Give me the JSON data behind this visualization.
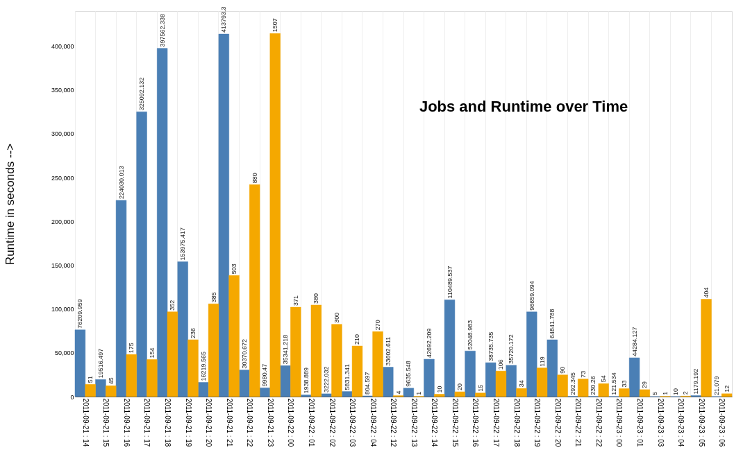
{
  "chart_data": {
    "type": "bar",
    "title": "Jobs and Runtime over Time",
    "ylabel": "Runtime in seconds -->",
    "categories": [
      "2011-09-21 : 14",
      "2011-09-21 : 15",
      "2011-09-21 : 16",
      "2011-09-21 : 17",
      "2011-09-21 : 18",
      "2011-09-21 : 19",
      "2011-09-21 : 20",
      "2011-09-21 : 21",
      "2011-09-21 : 22",
      "2011-09-21 : 23",
      "2011-09-22 : 00",
      "2011-09-22 : 01",
      "2011-09-22 : 02",
      "2011-09-22 : 03",
      "2011-09-22 : 04",
      "2011-09-22 : 12",
      "2011-09-22 : 13",
      "2011-09-22 : 14",
      "2011-09-22 : 15",
      "2011-09-22 : 16",
      "2011-09-22 : 17",
      "2011-09-22 : 18",
      "2011-09-22 : 19",
      "2011-09-22 : 20",
      "2011-09-22 : 21",
      "2011-09-22 : 22",
      "2011-09-23 : 00",
      "2011-09-23 : 01",
      "2011-09-23 : 03",
      "2011-09-23 : 04",
      "2011-09-23 : 05",
      "2011-09-23 : 06"
    ],
    "series": [
      {
        "color": "#4a7fb5",
        "values": [
          76209.959,
          19516.497,
          224030.013,
          325092.132,
          397562.338,
          153975.417,
          16219.565,
          413793.3,
          30370.672,
          9980.47,
          35341.218,
          1938.889,
          3222.032,
          5831.341,
          804.597,
          33602.611,
          9635.548,
          42692.209,
          110489.537,
          52048.983,
          38735.735,
          35720.172,
          96659.094,
          64841.788,
          292.345,
          230.26,
          121.534,
          44284.127,
          5,
          10,
          1179.192,
          21.079
        ]
      },
      {
        "color": "#f5a800",
        "axis": "y2",
        "values": [
          51,
          45,
          175,
          154,
          352,
          236,
          385,
          503,
          880,
          1507,
          371,
          380,
          300,
          210,
          270,
          4,
          1,
          10,
          20,
          15,
          106,
          34,
          119,
          90,
          73,
          54,
          33,
          29,
          1,
          2,
          404,
          12
        ]
      }
    ],
    "ylim": [
      0,
      440000
    ],
    "yticks": [
      0,
      {
        "value": 50000,
        "label": "50,000"
      },
      {
        "value": 100000,
        "label": "100,000"
      },
      {
        "value": 150000,
        "label": "150,000"
      },
      {
        "value": 200000,
        "label": "200,000"
      },
      {
        "value": 250000,
        "label": "250,000"
      },
      {
        "value": 300000,
        "label": "300,000"
      },
      {
        "value": 350000,
        "label": "350,000"
      },
      {
        "value": 400000,
        "label": "400,000"
      }
    ],
    "y2lim": [
      0,
      1600
    ],
    "tick_labels": "xy",
    "data_labels": true,
    "grid": "x"
  }
}
